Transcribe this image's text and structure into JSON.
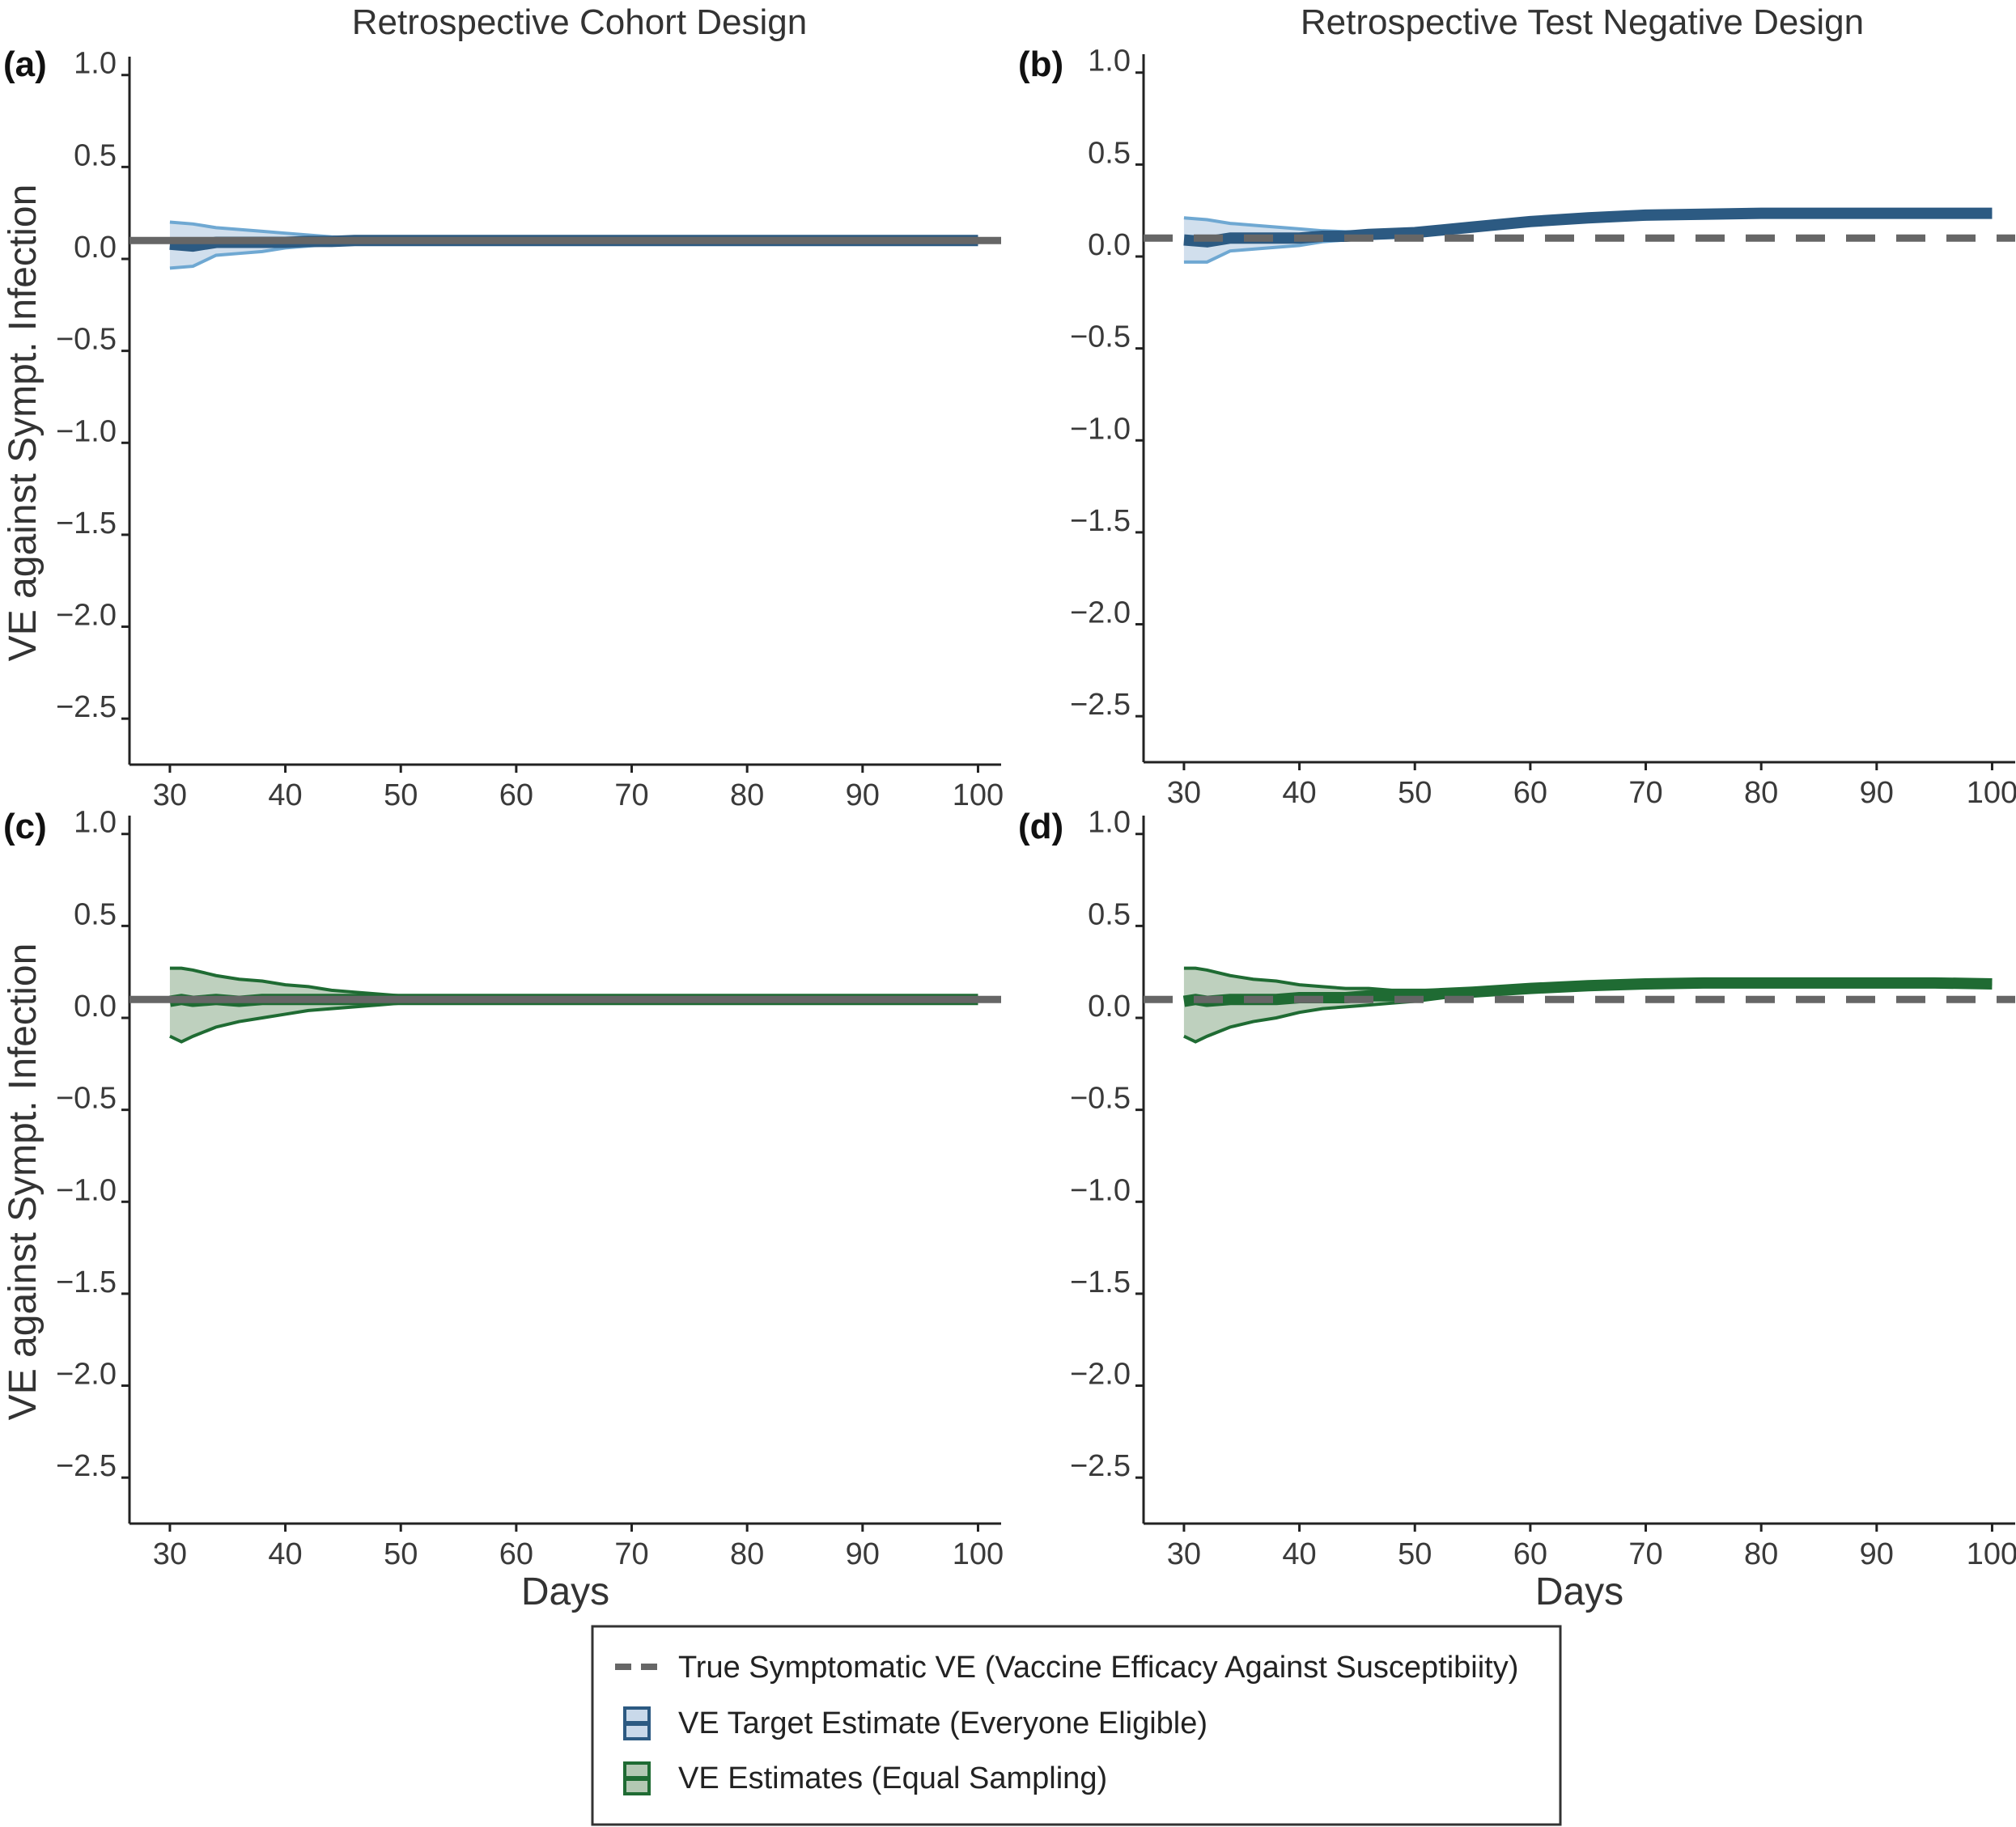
{
  "column_titles": [
    "Retrospective Cohort Design",
    "Retrospective Test Negative Design"
  ],
  "legend": {
    "items": [
      {
        "label": "True Symptomatic VE (Vaccine Efficacy Against Susceptibiity)",
        "kind": "dashed-line",
        "color": "#666666"
      },
      {
        "label": "VE Target Estimate (Everyone Eligible)",
        "kind": "band",
        "color": "#2c5a82"
      },
      {
        "label": "VE Estimates (Equal Sampling)",
        "kind": "band",
        "color": "#1f6b33"
      }
    ]
  },
  "colors": {
    "target_line": "#2c5a82",
    "target_band_fill": "#c9d9ea",
    "target_band_edge": "#6fa8d2",
    "equal_line": "#1f6b33",
    "equal_band_fill": "#b3c8b3",
    "equal_band_edge": "#1f6b33",
    "true_ve": "#666666"
  },
  "chart_data": [
    {
      "panel": "(a)",
      "type": "area",
      "title": "Retrospective Cohort Design",
      "xlabel": "",
      "ylabel": "VE against Sympt. Infection",
      "xlim": [
        26.5,
        102
      ],
      "ylim": [
        -2.75,
        1.1
      ],
      "xticks": [
        30,
        40,
        50,
        60,
        70,
        80,
        90,
        100
      ],
      "yticks": [
        1.0,
        0.5,
        0.0,
        -0.5,
        -1.0,
        -1.5,
        -2.0,
        -2.5
      ],
      "true_ve": {
        "value": 0.1,
        "style": "solid"
      },
      "series": [
        {
          "name": "VE Target Estimate (Everyone Eligible)",
          "style": "target",
          "x": [
            30,
            32,
            34,
            36,
            38,
            40,
            42,
            44,
            46,
            48,
            50,
            55,
            60,
            70,
            80,
            90,
            100
          ],
          "y": [
            0.08,
            0.07,
            0.09,
            0.09,
            0.09,
            0.09,
            0.095,
            0.095,
            0.1,
            0.1,
            0.1,
            0.1,
            0.1,
            0.1,
            0.1,
            0.1,
            0.1
          ],
          "lower": [
            -0.05,
            -0.04,
            0.02,
            0.03,
            0.04,
            0.06,
            0.07,
            0.08,
            0.09,
            0.09,
            0.095,
            0.1,
            0.1,
            0.1,
            0.1,
            0.1,
            0.1
          ],
          "upper": [
            0.2,
            0.19,
            0.17,
            0.16,
            0.15,
            0.14,
            0.13,
            0.12,
            0.115,
            0.11,
            0.105,
            0.1,
            0.1,
            0.1,
            0.1,
            0.1,
            0.1
          ]
        }
      ]
    },
    {
      "panel": "(b)",
      "type": "area",
      "title": "Retrospective Test Negative Design",
      "xlabel": "",
      "ylabel": "",
      "xlim": [
        26.5,
        102
      ],
      "ylim": [
        -2.75,
        1.1
      ],
      "xticks": [
        30,
        40,
        50,
        60,
        70,
        80,
        90,
        100
      ],
      "yticks": [
        1.0,
        0.5,
        0.0,
        -0.5,
        -1.0,
        -1.5,
        -2.0,
        -2.5
      ],
      "true_ve": {
        "value": 0.1,
        "style": "dashed"
      },
      "series": [
        {
          "name": "VE Target Estimate (Everyone Eligible)",
          "style": "target",
          "x": [
            30,
            32,
            34,
            36,
            38,
            40,
            42,
            44,
            46,
            48,
            50,
            55,
            60,
            65,
            70,
            75,
            80,
            85,
            90,
            95,
            100
          ],
          "y": [
            0.09,
            0.08,
            0.1,
            0.1,
            0.1,
            0.1,
            0.11,
            0.11,
            0.12,
            0.125,
            0.13,
            0.16,
            0.19,
            0.21,
            0.225,
            0.23,
            0.235,
            0.235,
            0.235,
            0.235,
            0.235
          ],
          "lower": [
            -0.03,
            -0.03,
            0.03,
            0.04,
            0.05,
            0.06,
            0.08,
            0.09,
            0.1,
            0.11,
            0.12,
            0.16,
            0.19,
            0.21,
            0.225,
            0.23,
            0.235,
            0.235,
            0.235,
            0.235,
            0.235
          ],
          "upper": [
            0.21,
            0.2,
            0.18,
            0.17,
            0.16,
            0.15,
            0.14,
            0.135,
            0.135,
            0.135,
            0.14,
            0.16,
            0.19,
            0.21,
            0.225,
            0.23,
            0.235,
            0.235,
            0.235,
            0.235,
            0.235
          ]
        }
      ]
    },
    {
      "panel": "(c)",
      "type": "area",
      "title": "",
      "xlabel": "Days",
      "ylabel": "VE against Sympt. Infection",
      "xlim": [
        26.5,
        102
      ],
      "ylim": [
        -2.75,
        1.1
      ],
      "xticks": [
        30,
        40,
        50,
        60,
        70,
        80,
        90,
        100
      ],
      "yticks": [
        1.0,
        0.5,
        0.0,
        -0.5,
        -1.0,
        -1.5,
        -2.0,
        -2.5
      ],
      "true_ve": {
        "value": 0.1,
        "style": "solid"
      },
      "series": [
        {
          "name": "VE Estimates (Equal Sampling)",
          "style": "equal",
          "x": [
            30,
            31,
            32,
            34,
            36,
            38,
            40,
            42,
            44,
            46,
            48,
            50,
            52,
            55,
            60,
            70,
            80,
            90,
            100
          ],
          "y": [
            0.09,
            0.1,
            0.09,
            0.1,
            0.09,
            0.1,
            0.1,
            0.1,
            0.1,
            0.1,
            0.1,
            0.1,
            0.1,
            0.1,
            0.1,
            0.1,
            0.1,
            0.1,
            0.1
          ],
          "lower": [
            -0.1,
            -0.13,
            -0.1,
            -0.05,
            -0.02,
            0.0,
            0.02,
            0.04,
            0.05,
            0.06,
            0.07,
            0.08,
            0.09,
            0.1,
            0.1,
            0.1,
            0.1,
            0.1,
            0.1
          ],
          "upper": [
            0.27,
            0.27,
            0.26,
            0.23,
            0.21,
            0.2,
            0.18,
            0.17,
            0.15,
            0.14,
            0.13,
            0.12,
            0.11,
            0.1,
            0.1,
            0.1,
            0.1,
            0.1,
            0.1
          ]
        }
      ]
    },
    {
      "panel": "(d)",
      "type": "area",
      "title": "",
      "xlabel": "Days",
      "ylabel": "",
      "xlim": [
        26.5,
        102
      ],
      "ylim": [
        -2.75,
        1.1
      ],
      "xticks": [
        30,
        40,
        50,
        60,
        70,
        80,
        90,
        100
      ],
      "yticks": [
        1.0,
        0.5,
        0.0,
        -0.5,
        -1.0,
        -1.5,
        -2.0,
        -2.5
      ],
      "true_ve": {
        "value": 0.1,
        "style": "dashed"
      },
      "series": [
        {
          "name": "VE Estimates (Equal Sampling)",
          "style": "equal",
          "x": [
            30,
            31,
            32,
            34,
            36,
            38,
            40,
            42,
            44,
            46,
            48,
            50,
            55,
            60,
            65,
            70,
            75,
            80,
            85,
            90,
            95,
            100
          ],
          "y": [
            0.09,
            0.1,
            0.09,
            0.1,
            0.1,
            0.1,
            0.11,
            0.11,
            0.11,
            0.12,
            0.12,
            0.125,
            0.14,
            0.16,
            0.175,
            0.185,
            0.19,
            0.19,
            0.19,
            0.19,
            0.19,
            0.185
          ],
          "lower": [
            -0.1,
            -0.13,
            -0.1,
            -0.05,
            -0.02,
            0.0,
            0.03,
            0.05,
            0.06,
            0.07,
            0.08,
            0.09,
            0.13,
            0.16,
            0.175,
            0.185,
            0.19,
            0.19,
            0.19,
            0.19,
            0.19,
            0.185
          ],
          "upper": [
            0.27,
            0.27,
            0.26,
            0.23,
            0.21,
            0.2,
            0.18,
            0.17,
            0.16,
            0.16,
            0.15,
            0.15,
            0.15,
            0.16,
            0.175,
            0.185,
            0.19,
            0.19,
            0.19,
            0.19,
            0.19,
            0.185
          ]
        }
      ]
    }
  ]
}
